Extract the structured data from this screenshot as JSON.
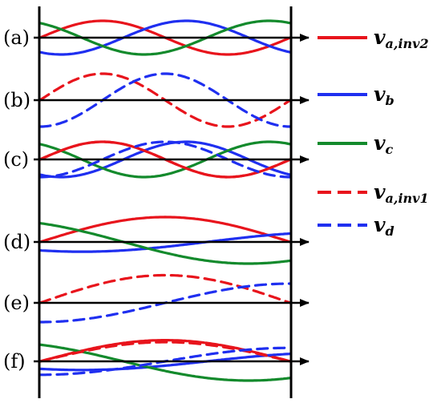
{
  "colors": {
    "red": "#e8141c",
    "blue": "#1f2ff0",
    "green": "#138a2c",
    "axis": "#000000"
  },
  "panels": [
    {
      "label": "(a)",
      "curves": [
        {
          "key": "va_inv2",
          "color": "red",
          "dashed": false,
          "A": 1.0,
          "cycles": 1,
          "phase": 0
        },
        {
          "key": "vb",
          "color": "blue",
          "dashed": false,
          "A": 1.0,
          "cycles": 1,
          "phase": -120
        },
        {
          "key": "vc",
          "color": "green",
          "dashed": false,
          "A": 1.0,
          "cycles": 1,
          "phase": 120
        }
      ]
    },
    {
      "label": "(b)",
      "curves": [
        {
          "key": "va_inv1",
          "color": "red",
          "dashed": true,
          "A": 1.1,
          "cycles": 1,
          "phase": 0
        },
        {
          "key": "vd",
          "color": "blue",
          "dashed": true,
          "A": 1.1,
          "cycles": 1,
          "phase": -90
        }
      ]
    },
    {
      "label": "(c)",
      "curves": [
        {
          "key": "va_inv2",
          "color": "red",
          "dashed": false,
          "A": 1.0,
          "cycles": 1,
          "phase": 0
        },
        {
          "key": "vb",
          "color": "blue",
          "dashed": false,
          "A": 1.0,
          "cycles": 1,
          "phase": -120
        },
        {
          "key": "vc",
          "color": "green",
          "dashed": false,
          "A": 1.0,
          "cycles": 1,
          "phase": 120
        },
        {
          "key": "va_inv1",
          "color": "red",
          "dashed": true,
          "A": 1.0,
          "cycles": 1,
          "phase": 0
        },
        {
          "key": "vd",
          "color": "blue",
          "dashed": true,
          "A": 1.0,
          "cycles": 1,
          "phase": -90
        }
      ]
    },
    {
      "label": "(d)",
      "curves": [
        {
          "key": "va_inv2",
          "color": "red",
          "dashed": false,
          "A": 1.15,
          "cycles": 0.5,
          "phase": 0
        },
        {
          "key": "vb",
          "color": "blue",
          "dashed": false,
          "A": 0.45,
          "cycles": 0.5,
          "phase": -120
        },
        {
          "key": "vc",
          "color": "green",
          "dashed": false,
          "A": 1.0,
          "cycles": 0.5,
          "phase": 120
        }
      ]
    },
    {
      "label": "(e)",
      "curves": [
        {
          "key": "va_inv1",
          "color": "red",
          "dashed": true,
          "A": 1.15,
          "cycles": 0.5,
          "phase": 0
        },
        {
          "key": "vd",
          "color": "blue",
          "dashed": true,
          "A": 0.8,
          "cycles": 0.5,
          "phase": -90
        }
      ]
    },
    {
      "label": "(f)",
      "curves": [
        {
          "key": "va_inv2",
          "color": "red",
          "dashed": false,
          "A": 1.1,
          "cycles": 0.5,
          "phase": 0
        },
        {
          "key": "vb",
          "color": "blue",
          "dashed": false,
          "A": 0.45,
          "cycles": 0.5,
          "phase": -120
        },
        {
          "key": "vc",
          "color": "green",
          "dashed": false,
          "A": 1.0,
          "cycles": 0.5,
          "phase": 120
        },
        {
          "key": "va_inv1",
          "color": "red",
          "dashed": true,
          "A": 1.0,
          "cycles": 0.5,
          "phase": 0
        },
        {
          "key": "vd",
          "color": "blue",
          "dashed": true,
          "A": 0.7,
          "cycles": 0.5,
          "phase": -90
        }
      ]
    }
  ],
  "legend": [
    {
      "key": "va_inv2",
      "color": "red",
      "dashed": false,
      "main": "v",
      "sub": "a,inv2"
    },
    {
      "key": "vb",
      "color": "blue",
      "dashed": false,
      "main": "v",
      "sub": "b"
    },
    {
      "key": "vc",
      "color": "green",
      "dashed": false,
      "main": "v",
      "sub": "c"
    },
    {
      "key": "va_inv1",
      "color": "red",
      "dashed": true,
      "main": "v",
      "sub": "a,inv1"
    },
    {
      "key": "vd",
      "color": "blue",
      "dashed": true,
      "main": "v",
      "sub": "d"
    }
  ]
}
